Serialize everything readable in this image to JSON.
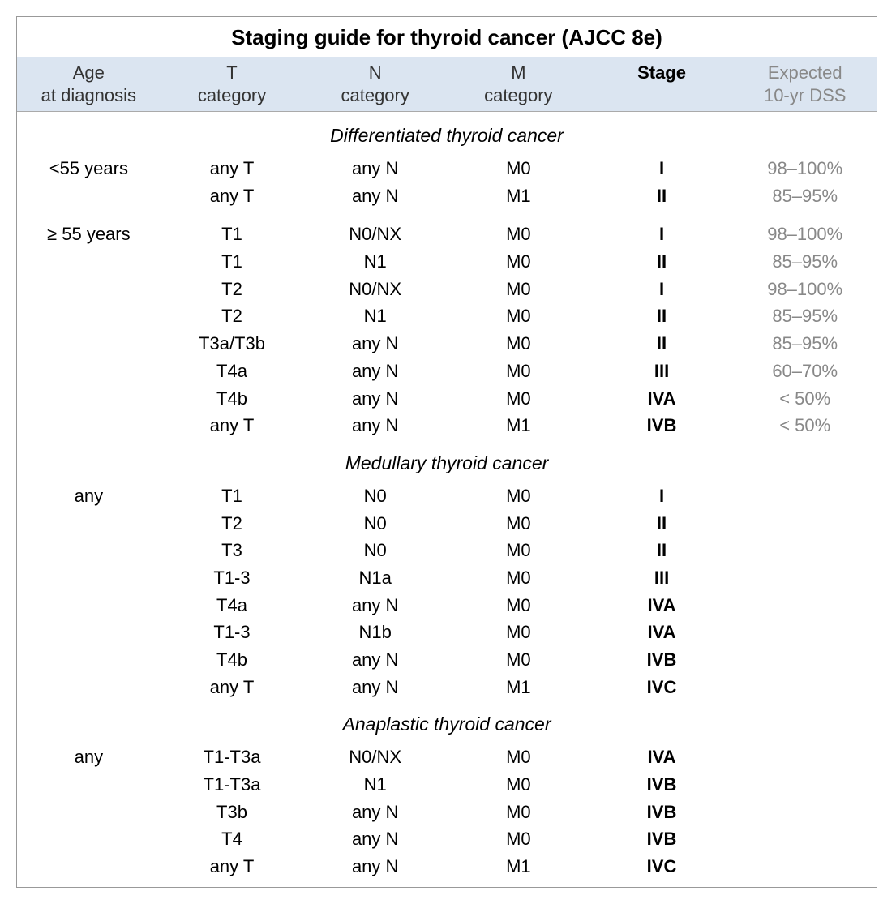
{
  "title": "Staging guide for thyroid cancer (AJCC 8e)",
  "columns": {
    "age": "Age\nat diagnosis",
    "t": "T\ncategory",
    "n": "N\ncategory",
    "m": "M\ncategory",
    "stage": "Stage",
    "dss": "Expected\n10-yr DSS"
  },
  "sections": [
    {
      "title": "Differentiated thyroid cancer",
      "groups": [
        {
          "age": "<55 years",
          "rows": [
            {
              "t": "any T",
              "n": "any N",
              "m": "M0",
              "stage": "I",
              "dss": "98–100%"
            },
            {
              "t": "any T",
              "n": "any N",
              "m": "M1",
              "stage": "II",
              "dss": "85–95%"
            }
          ]
        },
        {
          "age": "≥ 55 years",
          "rows": [
            {
              "t": "T1",
              "n": "N0/NX",
              "m": "M0",
              "stage": "I",
              "dss": "98–100%"
            },
            {
              "t": "T1",
              "n": "N1",
              "m": "M0",
              "stage": "II",
              "dss": "85–95%"
            },
            {
              "t": "T2",
              "n": "N0/NX",
              "m": "M0",
              "stage": "I",
              "dss": "98–100%"
            },
            {
              "t": "T2",
              "n": "N1",
              "m": "M0",
              "stage": "II",
              "dss": "85–95%"
            },
            {
              "t": "T3a/T3b",
              "n": "any N",
              "m": "M0",
              "stage": "II",
              "dss": "85–95%"
            },
            {
              "t": "T4a",
              "n": "any N",
              "m": "M0",
              "stage": "III",
              "dss": "60–70%"
            },
            {
              "t": "T4b",
              "n": "any N",
              "m": "M0",
              "stage": "IVA",
              "dss": "< 50%"
            },
            {
              "t": "any T",
              "n": "any N",
              "m": "M1",
              "stage": "IVB",
              "dss": "< 50%"
            }
          ]
        }
      ]
    },
    {
      "title": "Medullary thyroid cancer",
      "groups": [
        {
          "age": "any",
          "rows": [
            {
              "t": "T1",
              "n": "N0",
              "m": "M0",
              "stage": "I",
              "dss": ""
            },
            {
              "t": "T2",
              "n": "N0",
              "m": "M0",
              "stage": "II",
              "dss": ""
            },
            {
              "t": "T3",
              "n": "N0",
              "m": "M0",
              "stage": "II",
              "dss": ""
            },
            {
              "t": "T1-3",
              "n": "N1a",
              "m": "M0",
              "stage": "III",
              "dss": ""
            },
            {
              "t": "T4a",
              "n": "any N",
              "m": "M0",
              "stage": "IVA",
              "dss": ""
            },
            {
              "t": "T1-3",
              "n": "N1b",
              "m": "M0",
              "stage": "IVA",
              "dss": ""
            },
            {
              "t": "T4b",
              "n": "any N",
              "m": "M0",
              "stage": "IVB",
              "dss": ""
            },
            {
              "t": "any T",
              "n": "any N",
              "m": "M1",
              "stage": "IVC",
              "dss": ""
            }
          ]
        }
      ]
    },
    {
      "title": "Anaplastic thyroid cancer",
      "groups": [
        {
          "age": "any",
          "rows": [
            {
              "t": "T1-T3a",
              "n": "N0/NX",
              "m": "M0",
              "stage": "IVA",
              "dss": ""
            },
            {
              "t": "T1-T3a",
              "n": "N1",
              "m": "M0",
              "stage": "IVB",
              "dss": ""
            },
            {
              "t": "T3b",
              "n": "any N",
              "m": "M0",
              "stage": "IVB",
              "dss": ""
            },
            {
              "t": "T4",
              "n": "any N",
              "m": "M0",
              "stage": "IVB",
              "dss": ""
            },
            {
              "t": "any T",
              "n": "any N",
              "m": "M1",
              "stage": "IVC",
              "dss": ""
            }
          ]
        }
      ]
    }
  ],
  "style": {
    "header_bg": "#dbe5f1",
    "border_color": "#999999",
    "text_color": "#000000",
    "muted_color": "#888888",
    "font_size_title": 26,
    "font_size_header": 22,
    "font_size_body": 22
  }
}
